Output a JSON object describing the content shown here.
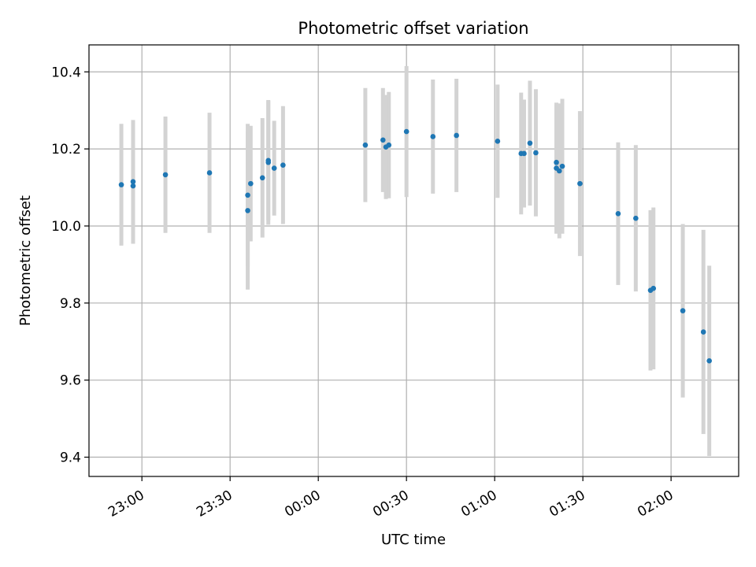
{
  "chart_data": {
    "type": "scatter",
    "title": "Photometric offset variation",
    "xlabel": "UTC time",
    "ylabel": "Photometric offset",
    "x_ticks": [
      "23:00",
      "23:30",
      "00:00",
      "00:30",
      "01:00",
      "01:30",
      "02:00"
    ],
    "y_ticks": [
      "9.4",
      "9.6",
      "9.8",
      "10.0",
      "10.2",
      "10.4"
    ],
    "xlim": [
      "22:42",
      "02:23"
    ],
    "ylim": [
      9.35,
      10.47
    ],
    "grid": true,
    "errorbar_color": "#d3d3d3",
    "marker_color": "#1f77b4",
    "series": [
      {
        "points": [
          {
            "x": "22:53",
            "y": 10.107,
            "yerr": 0.158
          },
          {
            "x": "22:57",
            "y": 10.115,
            "yerr": 0.16
          },
          {
            "x": "22:57",
            "y": 10.104,
            "yerr": 0.15
          },
          {
            "x": "23:08",
            "y": 10.133,
            "yerr": 0.151
          },
          {
            "x": "23:23",
            "y": 10.138,
            "yerr": 0.156
          },
          {
            "x": "23:36",
            "y": 10.08,
            "yerr": 0.185
          },
          {
            "x": "23:36",
            "y": 10.04,
            "yerr": 0.205
          },
          {
            "x": "23:37",
            "y": 10.11,
            "yerr": 0.15
          },
          {
            "x": "23:41",
            "y": 10.125,
            "yerr": 0.155
          },
          {
            "x": "23:43",
            "y": 10.165,
            "yerr": 0.162
          },
          {
            "x": "23:43",
            "y": 10.17,
            "yerr": 0.155
          },
          {
            "x": "23:45",
            "y": 10.15,
            "yerr": 0.123
          },
          {
            "x": "23:48",
            "y": 10.158,
            "yerr": 0.153
          },
          {
            "x": "00:16",
            "y": 10.21,
            "yerr": 0.148
          },
          {
            "x": "00:22",
            "y": 10.223,
            "yerr": 0.135
          },
          {
            "x": "00:23",
            "y": 10.205,
            "yerr": 0.135
          },
          {
            "x": "00:24",
            "y": 10.21,
            "yerr": 0.138
          },
          {
            "x": "00:30",
            "y": 10.245,
            "yerr": 0.17
          },
          {
            "x": "00:39",
            "y": 10.232,
            "yerr": 0.148
          },
          {
            "x": "00:47",
            "y": 10.235,
            "yerr": 0.147
          },
          {
            "x": "01:01",
            "y": 10.22,
            "yerr": 0.147
          },
          {
            "x": "01:09",
            "y": 10.188,
            "yerr": 0.158
          },
          {
            "x": "01:10",
            "y": 10.188,
            "yerr": 0.14
          },
          {
            "x": "01:12",
            "y": 10.215,
            "yerr": 0.162
          },
          {
            "x": "01:14",
            "y": 10.19,
            "yerr": 0.165
          },
          {
            "x": "01:21",
            "y": 10.165,
            "yerr": 0.15
          },
          {
            "x": "01:21",
            "y": 10.15,
            "yerr": 0.17
          },
          {
            "x": "01:22",
            "y": 10.143,
            "yerr": 0.175
          },
          {
            "x": "01:23",
            "y": 10.155,
            "yerr": 0.175
          },
          {
            "x": "01:29",
            "y": 10.11,
            "yerr": 0.188
          },
          {
            "x": "01:42",
            "y": 10.032,
            "yerr": 0.185
          },
          {
            "x": "01:48",
            "y": 10.02,
            "yerr": 0.19
          },
          {
            "x": "01:53",
            "y": 9.833,
            "yerr": 0.208
          },
          {
            "x": "01:54",
            "y": 9.838,
            "yerr": 0.21
          },
          {
            "x": "02:04",
            "y": 9.78,
            "yerr": 0.225
          },
          {
            "x": "02:11",
            "y": 9.725,
            "yerr": 0.265
          },
          {
            "x": "02:13",
            "y": 9.65,
            "yerr": 0.247
          }
        ]
      }
    ]
  }
}
